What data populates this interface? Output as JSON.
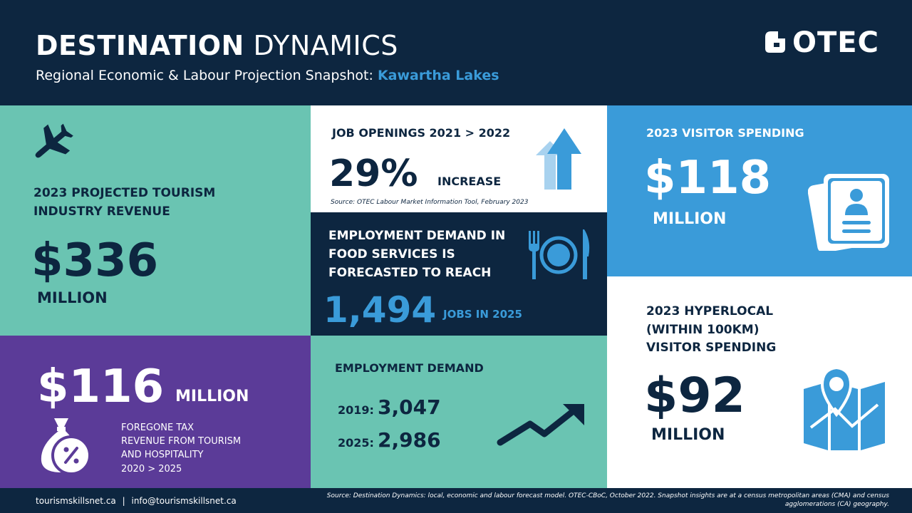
{
  "header": {
    "title_bold": "DESTINATION",
    "title_rest": "DYNAMICS",
    "subtitle": "Regional Economic & Labour Projection Snapshot:",
    "region": "Kawartha Lakes",
    "logo_text": "OTEC"
  },
  "tourism_revenue": {
    "icon": "airplane-icon",
    "label_line1": "2023 PROJECTED TOURISM",
    "label_line2": "INDUSTRY REVENUE",
    "value": "$336",
    "unit": "MILLION"
  },
  "foregone_tax": {
    "icon": "money-bag-percent-icon",
    "value": "$116",
    "unit": "MILLION",
    "desc_line1": "FOREGONE TAX",
    "desc_line2": "REVENUE FROM TOURISM",
    "desc_line3": "AND HOSPITALITY",
    "desc_line4": "2020 > 2025"
  },
  "job_openings": {
    "icon": "up-arrows-icon",
    "label": "JOB OPENINGS  2021 > 2022",
    "value": "29%",
    "unit": "INCREASE",
    "source": "Source: OTEC Labour Market Information Tool, February 2023"
  },
  "food_services": {
    "icon": "fork-plate-knife-icon",
    "label_line1": "EMPLOYMENT DEMAND IN",
    "label_line2": "FOOD SERVICES IS",
    "label_line3": "FORECASTED TO REACH",
    "value": "1,494",
    "unit": "JOBS IN 2025"
  },
  "employment_demand": {
    "icon": "trend-up-arrow-icon",
    "label": "EMPLOYMENT  DEMAND",
    "row1_year": "2019:",
    "row1_value": "3,047",
    "row2_year": "2025:",
    "row2_value": "2,986"
  },
  "visitor_spending": {
    "icon": "id-card-icon",
    "label": "2023 VISITOR SPENDING",
    "value": "$118",
    "unit": "MILLION"
  },
  "hyperlocal_spending": {
    "icon": "map-pin-icon",
    "label_line1": "2023 HYPERLOCAL",
    "label_line2": "(WITHIN 100KM)",
    "label_line3": "VISITOR SPENDING",
    "value": "$92",
    "unit": "MILLION"
  },
  "footer": {
    "website": "tourismskillsnet.ca",
    "separator": "|",
    "email": "info@tourismskillsnet.ca",
    "source": "Source: Destination Dynamics: local, economic and labour forecast model. OTEC-CBoC, October 2022. Snapshot insights are at a census metropolitan areas (CMA) and census agglomerations (CA) geography."
  },
  "colors": {
    "navy": "#0d2640",
    "teal": "#6ac4b2",
    "purple": "#5b3b98",
    "blue": "#3a9bd9",
    "white": "#ffffff"
  }
}
